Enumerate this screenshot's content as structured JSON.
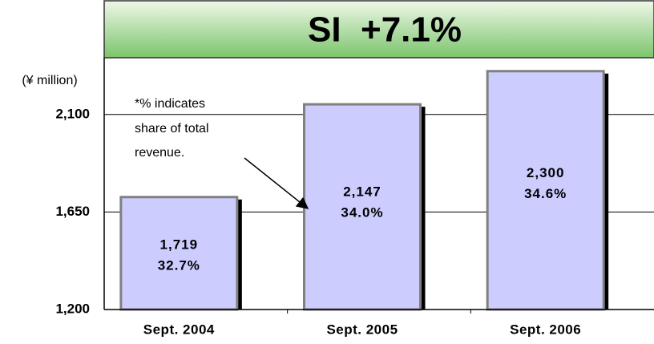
{
  "chart_data": {
    "type": "bar",
    "title": "SI  +7.1%",
    "y_axis_label": "(¥ million)",
    "annotation": [
      "*% indicates",
      "share of total",
      "revenue."
    ],
    "categories": [
      "Sept. 2004",
      "Sept. 2005",
      "Sept. 2006"
    ],
    "values": [
      1719,
      2147,
      2300
    ],
    "value_labels": [
      "1,719",
      "2,147",
      "2,300"
    ],
    "share_labels": [
      "32.7%",
      "34.0%",
      "34.6%"
    ],
    "color": "#ccccff",
    "ylim": [
      1200,
      2362
    ],
    "yticks": [
      {
        "value": 1200,
        "label": "1,200"
      },
      {
        "value": 1650,
        "label": "1,650"
      },
      {
        "value": 2100,
        "label": "2,100"
      }
    ],
    "grid": true
  }
}
